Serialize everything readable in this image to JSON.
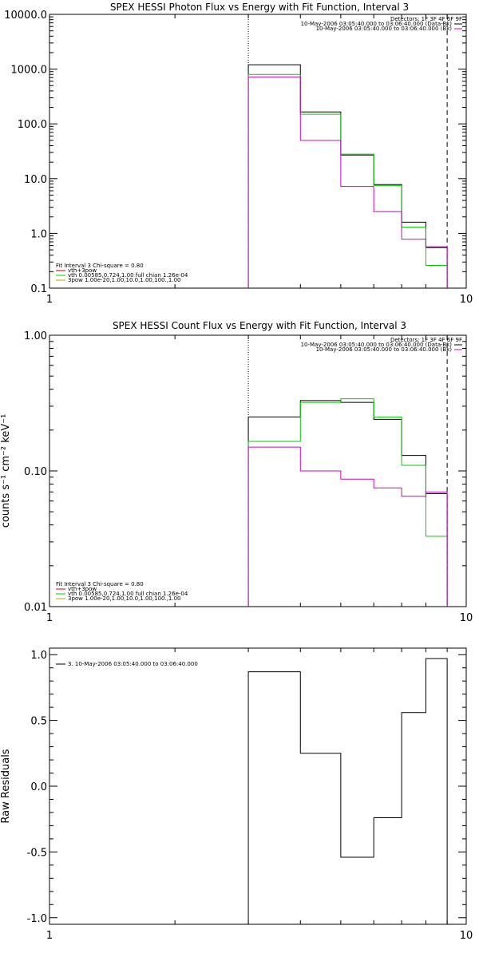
{
  "chart_data": [
    {
      "type": "step",
      "title": "SPEX HESSI Photon Flux vs Energy with Fit Function, Interval 3",
      "xlabel": "",
      "ylabel": "",
      "xscale": "log",
      "yscale": "log",
      "xlim": [
        1,
        10
      ],
      "ylim": [
        0.1,
        10000
      ],
      "x_ticks": [
        "1",
        "10"
      ],
      "y_ticks": [
        "0.1",
        "1.0",
        "10.0",
        "100.0",
        "1000.0",
        "10000.0"
      ],
      "energy_edges": [
        3.0,
        3.5,
        4.0,
        4.5,
        5.0,
        5.5,
        6.0,
        6.5,
        7.0,
        7.5,
        8.0,
        8.5,
        9.0
      ],
      "vlines": [
        {
          "x": 3.0,
          "style": "dotted"
        },
        {
          "x": 9.0,
          "style": "dashed"
        }
      ],
      "series": [
        {
          "color": "#000000",
          "values": [
            1200,
            1200,
            165,
            165,
            27,
            27,
            7.8,
            7.8,
            1.6,
            1.6,
            0.55,
            0.55
          ]
        },
        {
          "color": "#00cc00",
          "values": [
            800,
            800,
            150,
            150,
            28,
            28,
            7.5,
            7.5,
            1.3,
            1.3,
            0.26,
            0.26
          ]
        },
        {
          "color": "#cc00cc",
          "values": [
            720,
            720,
            50,
            50,
            7.2,
            7.2,
            2.5,
            2.5,
            0.78,
            0.78,
            0.57,
            0.57
          ]
        }
      ],
      "legend_top": [
        "Detectors: 1F 3F 4F 6F 9F",
        "10-May-2006 03:05:40.000 to 03:06:40.000 (Data-Bk)",
        "10-May-2006 03:05:40.000 to 03:06:40.000 (Bk)"
      ],
      "legend_top_colors": [
        "#000000",
        "#000000",
        "#cc00cc"
      ],
      "legend_bottom": [
        "Fit Interval 3   Chi-square = 0.80",
        "vth+3pow",
        "vth 0.00585,0.724,1.00  full chian 1.26e-04",
        "3pow 1.00e-20,1.00,10.0,1.00,100.,1.00"
      ],
      "legend_bottom_colors": [
        "#000000",
        "#cc0000",
        "#00cc00",
        "#cc9900"
      ]
    },
    {
      "type": "step",
      "title": "SPEX HESSI Count Flux vs Energy with Fit Function, Interval 3",
      "xlabel": "",
      "ylabel": "counts s⁻¹ cm⁻² keV⁻¹",
      "xscale": "log",
      "yscale": "log",
      "xlim": [
        1,
        10
      ],
      "ylim": [
        0.01,
        1.0
      ],
      "x_ticks": [
        "1",
        "10"
      ],
      "y_ticks": [
        "0.01",
        "0.10",
        "1.00"
      ],
      "energy_edges": [
        3.0,
        3.5,
        4.0,
        4.5,
        5.0,
        5.5,
        6.0,
        6.5,
        7.0,
        7.5,
        8.0,
        8.5,
        9.0
      ],
      "vlines": [
        {
          "x": 3.0,
          "style": "dotted"
        },
        {
          "x": 9.0,
          "style": "dashed"
        }
      ],
      "series": [
        {
          "color": "#000000",
          "values": [
            0.25,
            0.25,
            0.33,
            0.33,
            0.32,
            0.32,
            0.24,
            0.24,
            0.13,
            0.13,
            0.068,
            0.068
          ]
        },
        {
          "color": "#00cc00",
          "values": [
            0.165,
            0.165,
            0.32,
            0.32,
            0.34,
            0.34,
            0.25,
            0.25,
            0.11,
            0.11,
            0.033,
            0.033
          ]
        },
        {
          "color": "#cc00cc",
          "values": [
            0.15,
            0.15,
            0.1,
            0.1,
            0.087,
            0.087,
            0.075,
            0.075,
            0.065,
            0.065,
            0.07,
            0.07
          ]
        }
      ],
      "legend_top": [
        "Detectors: 1F 3F 4F 6F 9F",
        "10-May-2006 03:05:40.000 to 03:06:40.000 (Data-Bk)",
        "10-May-2006 03:05:40.000 to 03:06:40.000 (Bk)"
      ],
      "legend_top_colors": [
        "#000000",
        "#000000",
        "#cc00cc"
      ],
      "legend_bottom": [
        "Fit Interval 3   Chi-square = 0.80",
        "vth+3pow",
        "vth 0.00585,0.724,1.00  full chian 1.26e-04",
        "3pow 1.00e-20,1.00,10.0,1.00,100.,1.00"
      ],
      "legend_bottom_colors": [
        "#000000",
        "#cc0000",
        "#00cc00",
        "#cc9900"
      ]
    },
    {
      "type": "step",
      "title": "",
      "xlabel": "",
      "ylabel": "Raw Residuals",
      "xscale": "log",
      "yscale": "linear",
      "xlim": [
        1,
        10
      ],
      "ylim": [
        -1.05,
        1.05
      ],
      "x_ticks": [
        "1",
        "10"
      ],
      "y_ticks": [
        "-1.0",
        "-0.5",
        "0.0",
        "0.5",
        "1.0"
      ],
      "energy_edges": [
        3.0,
        3.5,
        4.0,
        4.5,
        5.0,
        5.5,
        6.0,
        6.5,
        7.0,
        7.5,
        8.0,
        8.5,
        9.0
      ],
      "series": [
        {
          "color": "#000000",
          "values": [
            0.87,
            0.87,
            0.25,
            0.25,
            -0.54,
            -0.54,
            -0.24,
            -0.24,
            0.56,
            0.56,
            0.97,
            0.97
          ]
        }
      ],
      "legend_top": [
        "3. 10-May-2006 03:05:40.000 to 03:06:40.000"
      ],
      "legend_top_colors": [
        "#000000"
      ]
    }
  ]
}
